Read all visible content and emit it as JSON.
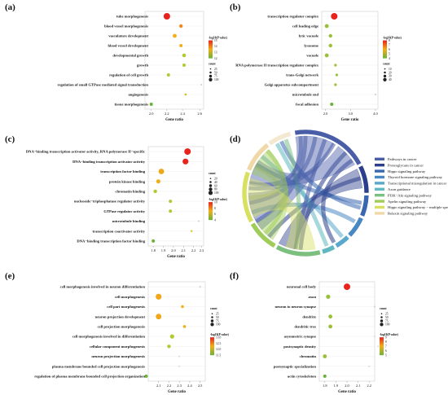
{
  "panels": [
    {
      "id": "a",
      "label": "(a)",
      "xlabel": "Gene ratio",
      "xticks": [
        "2.0",
        "2.2",
        "2.4",
        "2.6"
      ],
      "categories": [
        "tube morphogenesis",
        "blood vessel morphogenesis",
        "vasculature development",
        "blood vessel development",
        "developmental growth",
        "growth",
        "regulation of cell growth",
        "regulation of small GTPase mediated signal transduction",
        "angiogenesis",
        "tissue morphogenesis"
      ],
      "points": [
        {
          "x": 2.18,
          "color": "#e8221c",
          "size": 4
        },
        {
          "x": 2.36,
          "color": "#f08a20",
          "size": 2.2
        },
        {
          "x": 2.28,
          "color": "#f0b018",
          "size": 2.4
        },
        {
          "x": 2.36,
          "color": "#f0b018",
          "size": 2
        },
        {
          "x": 2.4,
          "color": "#b4c830",
          "size": 2.3
        },
        {
          "x": 2.4,
          "color": "#b4c830",
          "size": 2
        },
        {
          "x": 2.2,
          "color": "#b4c830",
          "size": 2
        },
        {
          "x": 2.62,
          "color": "#cccccc",
          "size": 1
        },
        {
          "x": 2.42,
          "color": "#c8c830",
          "size": 1.4
        },
        {
          "x": 1.98,
          "color": "#6ab23a",
          "size": 2
        }
      ],
      "legend": {
        "title1": "-log10(P value)",
        "ticks1": [
          "15",
          "14",
          "13",
          "12"
        ],
        "title2": "count",
        "ticks2": [
          "25",
          "50",
          "75",
          "100"
        ]
      }
    },
    {
      "id": "b",
      "label": "(b)",
      "xlabel": "Gene ratio",
      "xticks": [
        "2.0",
        "3.0",
        "4.0"
      ],
      "categories": [
        "transcription regulator complex",
        "cell leading edge",
        "lytic vacuole",
        "lysosome",
        "vacuole",
        "RNA polymerase II transcription regulator complex",
        "trans-Golgi network",
        "Golgi apparatus subcompartment",
        "microtubule end",
        "focal adhesion"
      ],
      "points": [
        {
          "x": 2.35,
          "color": "#e8221c",
          "size": 4
        },
        {
          "x": 2.05,
          "color": "#9ac038",
          "size": 2.4
        },
        {
          "x": 2.2,
          "color": "#9ac038",
          "size": 2.2
        },
        {
          "x": 2.2,
          "color": "#9ac038",
          "size": 2.2
        },
        {
          "x": 2.05,
          "color": "#9ac038",
          "size": 2.4
        },
        {
          "x": 2.4,
          "color": "#9ac038",
          "size": 1.6
        },
        {
          "x": 2.45,
          "color": "#9ac038",
          "size": 1.6
        },
        {
          "x": 2.4,
          "color": "#9ac038",
          "size": 1.6
        },
        {
          "x": 4.0,
          "color": "#cccccc",
          "size": 1
        },
        {
          "x": 2.25,
          "color": "#6ab23a",
          "size": 2
        }
      ],
      "legend": {
        "title1": "-log10(P value)",
        "ticks1": [
          "8",
          "7",
          "6",
          "5",
          "4"
        ],
        "title2": "count",
        "ticks2": [
          "10",
          "20",
          "30",
          "40"
        ]
      }
    },
    {
      "id": "c",
      "label": "(c)",
      "xlabel": "Gene ratio",
      "xticks": [
        "1.8",
        "1.9",
        "2.0",
        "2.1",
        "2.2",
        "2.3"
      ],
      "categories": [
        "DNA−binding transcription activator activity, RNA polymerase II−specific",
        "DNA−binding transcription activator activity",
        "transcription factor binding",
        "protein kinase binding",
        "chromatin binding",
        "nucleoside−triphosphatase regulator activity",
        "GTPase regulator activity",
        "microtubule binding",
        "transcription coactivator activity",
        "DNA−binding transcription factor binding"
      ],
      "points": [
        {
          "x": 2.14,
          "color": "#e8221c",
          "size": 4
        },
        {
          "x": 2.12,
          "color": "#e8221c",
          "size": 3.6
        },
        {
          "x": 1.88,
          "color": "#f0a818",
          "size": 3.4
        },
        {
          "x": 1.85,
          "color": "#f0b018",
          "size": 2.6
        },
        {
          "x": 1.82,
          "color": "#b4c830",
          "size": 2.2
        },
        {
          "x": 1.97,
          "color": "#b4c830",
          "size": 2
        },
        {
          "x": 1.97,
          "color": "#b4c830",
          "size": 2
        },
        {
          "x": 2.25,
          "color": "#cccccc",
          "size": 1
        },
        {
          "x": 2.18,
          "color": "#d0c830",
          "size": 1.2
        },
        {
          "x": 1.8,
          "color": "#6ab23a",
          "size": 2
        }
      ],
      "legend": {
        "title1": "count",
        "ticks1": [
          "20",
          "40",
          "60",
          "80",
          "100"
        ],
        "title2": "-log10(P value)",
        "ticks2": [
          "10",
          "8",
          "6",
          "4"
        ]
      }
    },
    {
      "id": "e",
      "label": "(e)",
      "xlabel": "Gene ratio",
      "xticks": [
        "2.1",
        "2.2",
        "2.3",
        "2.4",
        "2.5"
      ],
      "categories": [
        "cell morphogenesis involved in neuron differentiation",
        "cell morphogenesis",
        "cell part morphogenesis",
        "neuron projection development",
        "cell projection morphogenesis",
        "cell morphogenesis involved in differentiation",
        "cellular component morphogenesis",
        "neuron projection morphogenesis",
        "plasma membrane bounded cell projection morphogenesis",
        "regulation of plasma membrane bounded cell projection organization"
      ],
      "points": [
        {
          "x": 2.5,
          "color": "#cccccc",
          "size": 1
        },
        {
          "x": 2.1,
          "color": "#f0a818",
          "size": 3.6
        },
        {
          "x": 2.33,
          "color": "#f0b018",
          "size": 1.8
        },
        {
          "x": 2.1,
          "color": "#f0a818",
          "size": 3.4
        },
        {
          "x": 2.35,
          "color": "#f0b018",
          "size": 1.8
        },
        {
          "x": 2.23,
          "color": "#b4c830",
          "size": 2.6
        },
        {
          "x": 2.2,
          "color": "#b4c830",
          "size": 2.2
        },
        {
          "x": 2.3,
          "color": "#d8d8d0",
          "size": 1
        },
        {
          "x": 2.3,
          "color": "#d8d8d0",
          "size": 1
        },
        {
          "x": 1.98,
          "color": "#6ab23a",
          "size": 2
        }
      ],
      "legend": {
        "title1": "count",
        "ticks1": [
          "25",
          "50",
          "75",
          "100"
        ],
        "title2": "-log10(P value)",
        "ticks2": [
          "13.0",
          "12.5",
          "12.0",
          "11.5"
        ]
      }
    },
    {
      "id": "f",
      "label": "(f)",
      "xlabel": "Gene ratio",
      "xticks": [
        "1.8",
        "1.9",
        "2.0",
        "2.1",
        "2.2"
      ],
      "categories": [
        "neuronal cell body",
        "axon",
        "neuron to neuron synapse",
        "dendrite",
        "dendritic tree",
        "asymmetric synapse",
        "postsynaptic density",
        "chromatin",
        "postsynaptic specialization",
        "actin cytoskeleton"
      ],
      "points": [
        {
          "x": 2.0,
          "color": "#e8221c",
          "size": 4
        },
        {
          "x": 1.83,
          "color": "#9ac038",
          "size": 2.6
        },
        {
          "x": 2.25,
          "color": "#cccccc",
          "size": 1
        },
        {
          "x": 1.85,
          "color": "#9ac038",
          "size": 2.4
        },
        {
          "x": 1.85,
          "color": "#9ac038",
          "size": 2.4
        },
        {
          "x": 2.25,
          "color": "#d8d8d0",
          "size": 1
        },
        {
          "x": 2.28,
          "color": "#d8d8d0",
          "size": 1
        },
        {
          "x": 1.8,
          "color": "#9ac038",
          "size": 2.4
        },
        {
          "x": 2.2,
          "color": "#d8d8d0",
          "size": 1
        },
        {
          "x": 1.8,
          "color": "#6ab23a",
          "size": 2
        }
      ],
      "legend": {
        "title1": "count",
        "ticks1": [
          "25",
          "50",
          "75",
          "100"
        ],
        "title2": "-log10(P value)",
        "ticks2": [
          "9",
          "8",
          "7",
          "6",
          "5"
        ]
      }
    }
  ],
  "chord": {
    "label": "(d)",
    "legend": [
      {
        "name": "Pathways in cancer",
        "color": "#4a5ea8"
      },
      {
        "name": "Proteoglycans in cancer",
        "color": "#2c3f8c"
      },
      {
        "name": "Hippo signaling pathway",
        "color": "#3a68b0"
      },
      {
        "name": "Thyroid hormone signaling pathway",
        "color": "#4a88c4"
      },
      {
        "name": "Transcriptional misregulation in cancer",
        "color": "#5aa8cc"
      },
      {
        "name": "Axon guidance",
        "color": "#60b8c0"
      },
      {
        "name": "PI3K−Akt signaling pathway",
        "color": "#7cc080"
      },
      {
        "name": "Apelin signaling pathway",
        "color": "#a0cc58"
      },
      {
        "name": "Hippo signaling pathway − multiple species",
        "color": "#d8e060"
      },
      {
        "name": "Relaxin signaling pathway",
        "color": "#f0d8a8"
      }
    ]
  }
}
